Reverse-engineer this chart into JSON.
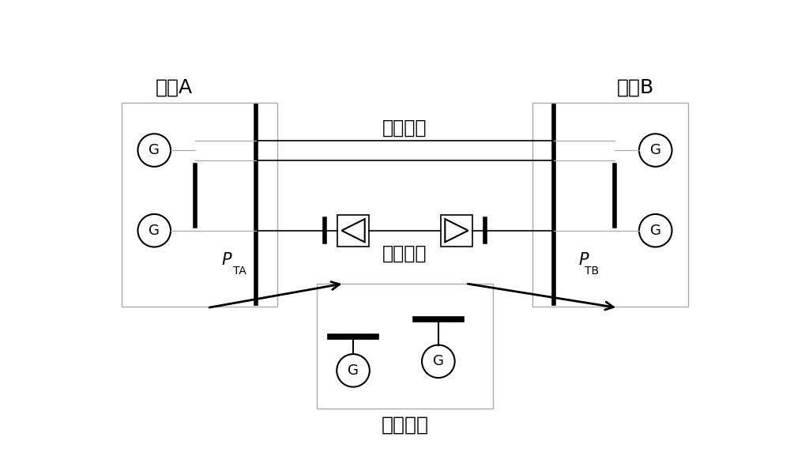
{
  "bg_color": "#ffffff",
  "label_A": "区域A",
  "label_B": "区域B",
  "label_other": "其他区域",
  "label_ac": "交流线路",
  "label_dc": "直流线路",
  "label_PTA_main": "P",
  "label_PTA_sub": "TA",
  "label_PTB_main": "P",
  "label_PTB_sub": "TB",
  "font_size_G": 13,
  "font_size_region": 18,
  "font_size_line_label": 17,
  "font_size_P": 15,
  "font_size_P_sub": 10
}
